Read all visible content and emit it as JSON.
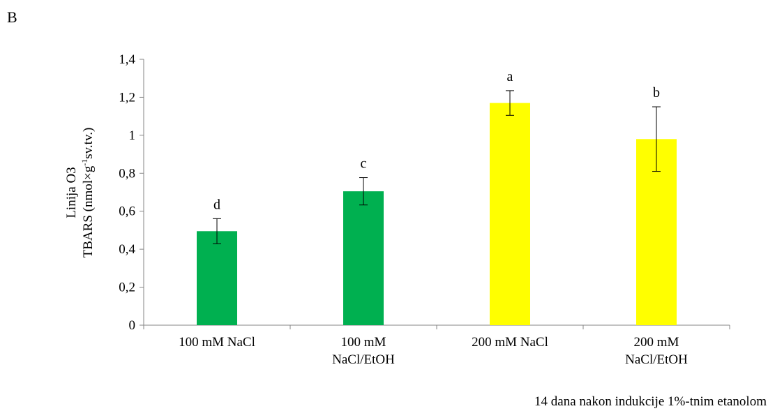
{
  "panel_label": "B",
  "footnote": "14 dana nakon indukcije 1%-tnim etanolom",
  "chart_data": {
    "type": "bar",
    "ylabel_line1": "Linija O3",
    "ylabel_line2_pre": "TBARS (nmol×g",
    "ylabel_line2_sup": "-1",
    "ylabel_line2_post": "sv.tv.)",
    "ylim": [
      0,
      1.4
    ],
    "yticks": [
      0,
      0.2,
      0.4,
      0.6,
      0.8,
      1,
      1.2,
      1.4
    ],
    "ytick_labels": [
      "0",
      "0,2",
      "0,4",
      "0,6",
      "0,8",
      "1",
      "1,2",
      "1,4"
    ],
    "categories": [
      [
        "100 mM NaCl"
      ],
      [
        "100 mM",
        "NaCl/EtOH"
      ],
      [
        "200 mM NaCl"
      ],
      [
        "200 mM",
        "NaCl/EtOH"
      ]
    ],
    "values": [
      0.495,
      0.705,
      1.17,
      0.98
    ],
    "errors": [
      0.066,
      0.072,
      0.065,
      0.17
    ],
    "letters": [
      "d",
      "c",
      "a",
      "b"
    ],
    "colors": [
      "#00b050",
      "#00b050",
      "#ffff00",
      "#ffff00"
    ],
    "grid": false
  }
}
